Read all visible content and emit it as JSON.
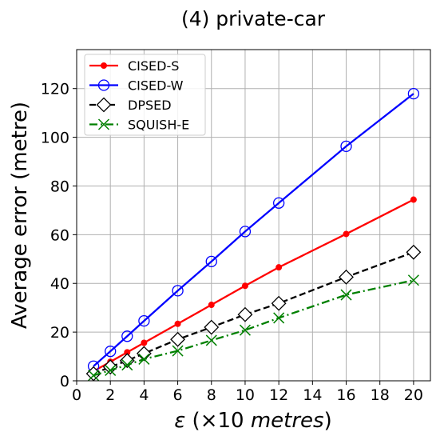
{
  "chart_data": {
    "type": "line",
    "title": "(4) private-car",
    "xlabel_symbol": "ε",
    "xlabel_rest": " (×10 ",
    "xlabel_unit": "metres",
    "xlabel_close": ")",
    "ylabel": "Average error (metre)",
    "xlim": [
      0,
      21
    ],
    "ylim": [
      0,
      136
    ],
    "xticks": [
      0,
      2,
      4,
      6,
      8,
      10,
      12,
      14,
      16,
      18,
      20
    ],
    "yticks": [
      0,
      20,
      40,
      60,
      80,
      100,
      120
    ],
    "grid": true,
    "legend_position": "top-left",
    "x": [
      1,
      2,
      3,
      4,
      6,
      8,
      10,
      12,
      16,
      20
    ],
    "series": [
      {
        "name": "CISED-S",
        "color": "#ff0000",
        "line_style": "solid",
        "marker": "filled-circle",
        "values": [
          3.9,
          7.8,
          11.7,
          15.6,
          23.4,
          31.2,
          39.0,
          46.6,
          60.3,
          74.4
        ]
      },
      {
        "name": "CISED-W",
        "color": "#0000ff",
        "line_style": "solid",
        "marker": "open-circle",
        "values": [
          6.0,
          12.1,
          18.3,
          24.6,
          37.0,
          49.0,
          61.3,
          73.0,
          96.3,
          117.9
        ]
      },
      {
        "name": "DPSED",
        "color": "#000000",
        "line_style": "dashed",
        "marker": "open-diamond",
        "values": [
          2.9,
          5.7,
          8.3,
          11.2,
          17.0,
          22.0,
          27.2,
          31.8,
          42.6,
          52.8
        ]
      },
      {
        "name": "SQUISH-E",
        "color": "#008000",
        "line_style": "dash-dot",
        "marker": "x",
        "values": [
          2.2,
          4.3,
          6.5,
          8.9,
          12.3,
          16.6,
          20.8,
          25.8,
          35.3,
          41.3
        ]
      }
    ]
  }
}
